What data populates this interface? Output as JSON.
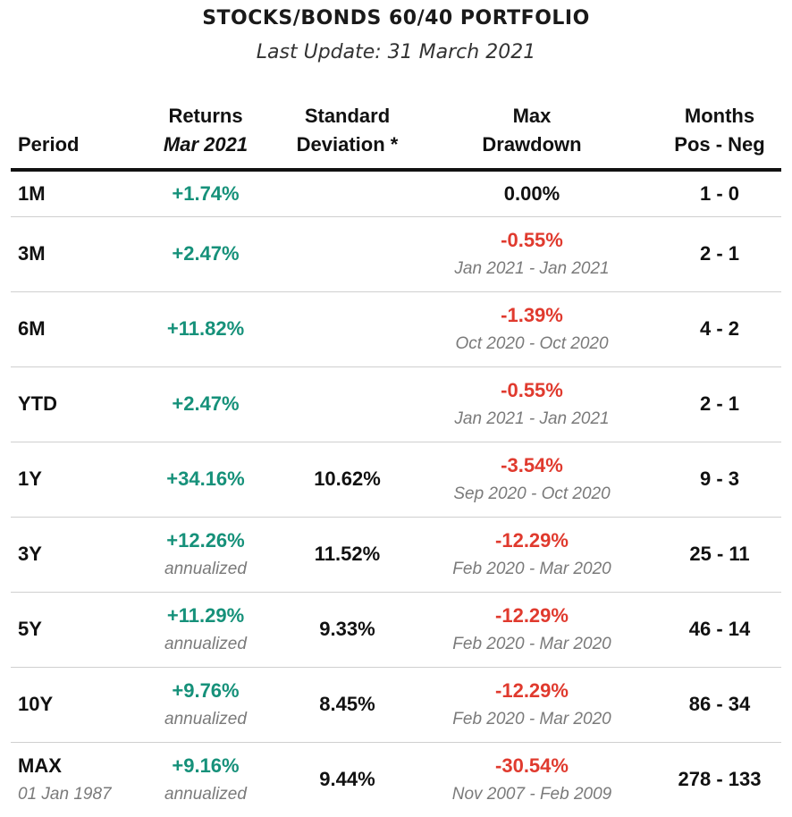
{
  "header": {
    "title": "STOCKS/BONDS 60/40 PORTFOLIO",
    "subtitle": "Last Update: 31 March 2021"
  },
  "columns": {
    "period": "Period",
    "returns_line1": "Returns",
    "returns_line2": "Mar 2021",
    "stddev_line1": "Standard",
    "stddev_line2": "Deviation *",
    "drawdown_line1": "Max",
    "drawdown_line2": "Drawdown",
    "months_line1": "Months",
    "months_line2": "Pos - Neg"
  },
  "colors": {
    "positive": "#16917a",
    "negative": "#e03a2e"
  },
  "rows": [
    {
      "period": "1M",
      "period_note": "",
      "returns": "+1.74%",
      "returns_note": "",
      "stddev": "",
      "drawdown": "0.00%",
      "drawdown_note": "",
      "drawdown_kind": "neutral",
      "months": "1 - 0"
    },
    {
      "period": "3M",
      "period_note": "",
      "returns": "+2.47%",
      "returns_note": "",
      "stddev": "",
      "drawdown": "-0.55%",
      "drawdown_note": "Jan 2021 - Jan 2021",
      "drawdown_kind": "neg",
      "months": "2 - 1"
    },
    {
      "period": "6M",
      "period_note": "",
      "returns": "+11.82%",
      "returns_note": "",
      "stddev": "",
      "drawdown": "-1.39%",
      "drawdown_note": "Oct 2020 - Oct 2020",
      "drawdown_kind": "neg",
      "months": "4 - 2"
    },
    {
      "period": "YTD",
      "period_note": "",
      "returns": "+2.47%",
      "returns_note": "",
      "stddev": "",
      "drawdown": "-0.55%",
      "drawdown_note": "Jan 2021 - Jan 2021",
      "drawdown_kind": "neg",
      "months": "2 - 1"
    },
    {
      "period": "1Y",
      "period_note": "",
      "returns": "+34.16%",
      "returns_note": "",
      "stddev": "10.62%",
      "drawdown": "-3.54%",
      "drawdown_note": "Sep 2020 - Oct 2020",
      "drawdown_kind": "neg",
      "months": "9 - 3"
    },
    {
      "period": "3Y",
      "period_note": "",
      "returns": "+12.26%",
      "returns_note": "annualized",
      "stddev": "11.52%",
      "drawdown": "-12.29%",
      "drawdown_note": "Feb 2020 - Mar 2020",
      "drawdown_kind": "neg",
      "months": "25 - 11"
    },
    {
      "period": "5Y",
      "period_note": "",
      "returns": "+11.29%",
      "returns_note": "annualized",
      "stddev": "9.33%",
      "drawdown": "-12.29%",
      "drawdown_note": "Feb 2020 - Mar 2020",
      "drawdown_kind": "neg",
      "months": "46 - 14"
    },
    {
      "period": "10Y",
      "period_note": "",
      "returns": "+9.76%",
      "returns_note": "annualized",
      "stddev": "8.45%",
      "drawdown": "-12.29%",
      "drawdown_note": "Feb 2020 - Mar 2020",
      "drawdown_kind": "neg",
      "months": "86 - 34"
    },
    {
      "period": "MAX",
      "period_note": "01 Jan 1987",
      "returns": "+9.16%",
      "returns_note": "annualized",
      "stddev": "9.44%",
      "drawdown": "-30.54%",
      "drawdown_note": "Nov 2007 - Feb 2009",
      "drawdown_kind": "neg",
      "months": "278 - 133"
    }
  ]
}
